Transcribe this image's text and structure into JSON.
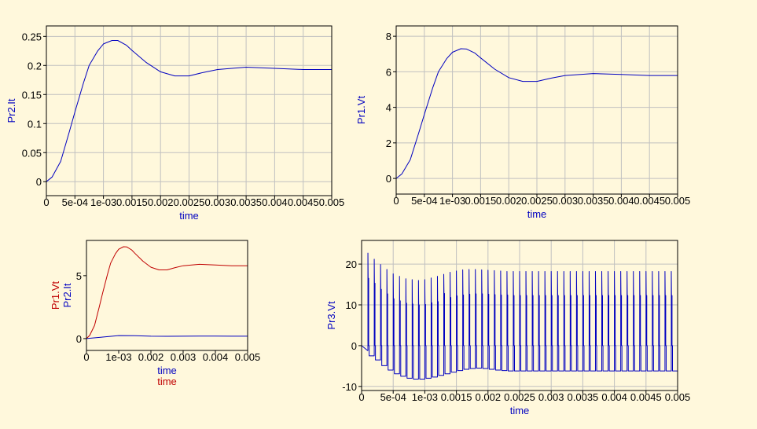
{
  "colors": {
    "background": "#fff8dc",
    "grid": "#c0c0c0",
    "blue": "#0000c0",
    "red": "#c00000"
  },
  "chart_data": [
    {
      "type": "line",
      "xlabel": "time",
      "ylabel": "Pr2.It",
      "xlim": [
        0,
        0.005
      ],
      "ylim": [
        -0.024,
        0.268
      ],
      "grid": true,
      "xticks": [
        0,
        0.0005,
        0.001,
        0.0015,
        0.002,
        0.0025,
        0.003,
        0.0035,
        0.004,
        0.0045,
        0.005
      ],
      "xtick_labels": [
        "0",
        "5e-04",
        "1e-03",
        "0.0015",
        "0.002",
        "0.0025",
        "0.003",
        "0.0035",
        "0.004",
        "0.0045",
        "0.005"
      ],
      "yticks": [
        0,
        0.05,
        0.1,
        0.15,
        0.2,
        0.25
      ],
      "ytick_labels": [
        "0",
        "0.05",
        "0.1",
        "0.15",
        "0.2",
        "0.25"
      ],
      "series": [
        {
          "name": "Pr2.It",
          "color": "#0000c0",
          "x": [
            0,
            0.0001,
            0.00025,
            0.0004,
            0.0005,
            0.00065,
            0.00075,
            0.0009,
            0.001,
            0.00115,
            0.00125,
            0.0014,
            0.0015,
            0.00175,
            0.002,
            0.00225,
            0.0025,
            0.00275,
            0.003,
            0.0035,
            0.004,
            0.0045,
            0.005
          ],
          "y": [
            0,
            0.008,
            0.035,
            0.085,
            0.12,
            0.17,
            0.2,
            0.225,
            0.237,
            0.243,
            0.243,
            0.235,
            0.226,
            0.205,
            0.189,
            0.182,
            0.182,
            0.188,
            0.193,
            0.197,
            0.195,
            0.193,
            0.193
          ]
        }
      ]
    },
    {
      "type": "line",
      "xlabel": "time",
      "ylabel": "Pr1.Vt",
      "xlim": [
        0,
        0.005
      ],
      "ylim": [
        -0.88,
        8.58
      ],
      "grid": true,
      "xticks": [
        0,
        0.0005,
        0.001,
        0.0015,
        0.002,
        0.0025,
        0.003,
        0.0035,
        0.004,
        0.0045,
        0.005
      ],
      "xtick_labels": [
        "0",
        "5e-04",
        "1e-03",
        "0.0015",
        "0.002",
        "0.0025",
        "0.003",
        "0.0035",
        "0.004",
        "0.0045",
        "0.005"
      ],
      "yticks": [
        0,
        2,
        4,
        6,
        8
      ],
      "ytick_labels": [
        "0",
        "2",
        "4",
        "6",
        "8"
      ],
      "series": [
        {
          "name": "Pr1.Vt",
          "color": "#0000c0",
          "x": [
            0,
            0.0001,
            0.00025,
            0.0004,
            0.0005,
            0.00065,
            0.00075,
            0.0009,
            0.001,
            0.00115,
            0.00125,
            0.0014,
            0.0015,
            0.00175,
            0.002,
            0.00225,
            0.0025,
            0.00275,
            0.003,
            0.0035,
            0.004,
            0.0045,
            0.005
          ],
          "y": [
            0,
            0.25,
            1.05,
            2.55,
            3.6,
            5.1,
            6.0,
            6.75,
            7.1,
            7.3,
            7.28,
            7.05,
            6.78,
            6.15,
            5.67,
            5.46,
            5.46,
            5.64,
            5.79,
            5.9,
            5.85,
            5.79,
            5.79
          ]
        }
      ]
    },
    {
      "type": "line",
      "xlabel": "time",
      "xlabel2": "time",
      "ylabel": "Pr2.It",
      "ylabel2": "Pr1.Vt",
      "xlim": [
        0,
        0.005
      ],
      "ylim": [
        -0.94,
        7.8
      ],
      "grid": false,
      "xticks": [
        0,
        0.001,
        0.002,
        0.003,
        0.004,
        0.005
      ],
      "xtick_labels": [
        "0",
        "1e-03",
        "0.002",
        "0.003",
        "0.004",
        "0.005"
      ],
      "yticks": [
        0,
        5
      ],
      "ytick_labels": [
        "0",
        "5"
      ],
      "series": [
        {
          "name": "Pr1.Vt",
          "color": "#c00000",
          "x": [
            0,
            0.0001,
            0.00025,
            0.0004,
            0.0005,
            0.00065,
            0.00075,
            0.0009,
            0.001,
            0.00115,
            0.00125,
            0.0014,
            0.0015,
            0.00175,
            0.002,
            0.00225,
            0.0025,
            0.00275,
            0.003,
            0.0035,
            0.004,
            0.0045,
            0.005
          ],
          "y": [
            0,
            0.25,
            1.05,
            2.55,
            3.6,
            5.1,
            6.0,
            6.75,
            7.1,
            7.3,
            7.28,
            7.05,
            6.78,
            6.15,
            5.67,
            5.46,
            5.46,
            5.64,
            5.79,
            5.9,
            5.85,
            5.79,
            5.79
          ]
        },
        {
          "name": "Pr2.It",
          "color": "#0000c0",
          "x": [
            0,
            0.0005,
            0.001,
            0.0015,
            0.002,
            0.0025,
            0.003,
            0.0035,
            0.004,
            0.0045,
            0.005
          ],
          "y": [
            0,
            0.12,
            0.237,
            0.226,
            0.189,
            0.182,
            0.193,
            0.197,
            0.195,
            0.193,
            0.193
          ]
        }
      ]
    },
    {
      "type": "line",
      "xlabel": "time",
      "ylabel": "Pr3.Vt",
      "xlim": [
        0,
        0.005
      ],
      "ylim": [
        -11,
        25.8
      ],
      "grid": true,
      "xticks": [
        0,
        0.0005,
        0.001,
        0.0015,
        0.002,
        0.0025,
        0.003,
        0.0035,
        0.004,
        0.0045,
        0.005
      ],
      "xtick_labels": [
        "0",
        "5e-04",
        "1e-03",
        "0.0015",
        "0.002",
        "0.0025",
        "0.003",
        "0.0035",
        "0.004",
        "0.0045",
        "0.005"
      ],
      "yticks": [
        -10,
        0,
        10,
        20
      ],
      "ytick_labels": [
        "-10",
        "0",
        "10",
        "20"
      ],
      "series": [
        {
          "name": "Pr3.Vt",
          "color": "#0000c0",
          "pulse_period": 0.0001,
          "pulse_peaks": [
            22.7,
            21.2,
            19.9,
            18.7,
            17.6,
            17.0,
            16.4,
            16.2,
            16.0,
            16.2,
            16.6,
            17.0,
            17.5,
            18.0,
            18.3,
            18.6,
            18.7,
            18.7,
            18.6,
            18.5,
            18.4,
            18.3,
            18.2,
            18.2,
            18.2,
            18.2,
            18.2,
            18.2,
            18.2,
            18.2,
            18.2,
            18.2,
            18.2,
            18.2,
            18.2,
            18.2,
            18.2,
            18.2,
            18.2,
            18.2,
            18.2,
            18.2,
            18.2,
            18.2,
            18.2,
            18.2,
            18.2,
            18.2,
            18.2,
            18.2
          ],
          "pulse_plateaus": [
            16.5,
            15.3,
            13.8,
            12.7,
            11.5,
            11.0,
            10.4,
            10.2,
            10.0,
            10.1,
            10.5,
            10.8,
            12.8,
            11.8,
            12.2,
            12.4,
            12.6,
            12.7,
            12.7,
            12.6,
            12.5,
            12.4,
            12.4,
            12.3,
            12.3,
            12.3,
            12.3,
            12.3,
            12.3,
            12.3,
            12.3,
            12.3,
            12.3,
            12.3,
            12.3,
            12.3,
            12.3,
            12.3,
            12.3,
            12.3,
            12.3,
            12.3,
            12.3,
            12.3,
            12.3,
            12.3,
            12.3,
            12.3,
            12.3,
            12.3
          ],
          "pulse_lows": [
            -1.2,
            -2.5,
            -3.5,
            -4.9,
            -6.0,
            -6.9,
            -7.5,
            -8.0,
            -8.2,
            -8.2,
            -8.0,
            -7.7,
            -7.3,
            -6.9,
            -6.5,
            -6.1,
            -5.8,
            -5.6,
            -5.5,
            -5.6,
            -5.8,
            -6.0,
            -6.1,
            -6.2,
            -6.2,
            -6.2,
            -6.2,
            -6.2,
            -6.2,
            -6.2,
            -6.2,
            -6.2,
            -6.2,
            -6.2,
            -6.2,
            -6.2,
            -6.2,
            -6.2,
            -6.2,
            -6.2,
            -6.2,
            -6.2,
            -6.2,
            -6.2,
            -6.2,
            -6.2,
            -6.2,
            -6.2,
            -6.2,
            -6.2
          ]
        }
      ]
    }
  ]
}
